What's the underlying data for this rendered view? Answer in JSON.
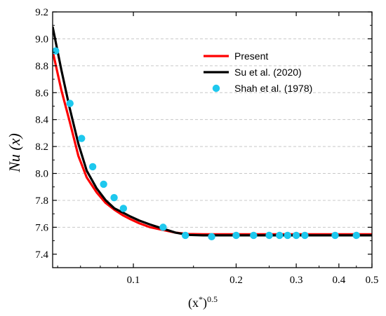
{
  "chart_data": {
    "type": "line",
    "xlabel": {
      "base": "(x",
      "sup1": "*",
      "close": ")",
      "sup2": "0.5"
    },
    "ylabel": {
      "main": "Nu",
      "arg": " (x)"
    },
    "xscale": "log",
    "xlim": [
      0.058,
      0.5
    ],
    "ylim": [
      7.3,
      9.2
    ],
    "x_ticks": [
      {
        "value": 0.1,
        "label": "0.1"
      },
      {
        "value": 0.2,
        "label": "0.2"
      },
      {
        "value": 0.3,
        "label": "0.3"
      },
      {
        "value": 0.4,
        "label": "0.4"
      },
      {
        "value": 0.5,
        "label": "0.5"
      }
    ],
    "y_ticks": [
      {
        "value": 7.4,
        "label": "7.4"
      },
      {
        "value": 7.6,
        "label": "7.6"
      },
      {
        "value": 7.8,
        "label": "7.8"
      },
      {
        "value": 8.0,
        "label": "8.0"
      },
      {
        "value": 8.2,
        "label": "8.2"
      },
      {
        "value": 8.4,
        "label": "8.4"
      },
      {
        "value": 8.6,
        "label": "8.6"
      },
      {
        "value": 8.8,
        "label": "8.8"
      },
      {
        "value": 9.0,
        "label": "9.0"
      },
      {
        "value": 9.2,
        "label": "9.2"
      }
    ],
    "grid": {
      "horizontal": true,
      "vertical": false
    },
    "legend_position": "top-right",
    "series": [
      {
        "name": "Present",
        "kind": "line",
        "color": "#ff0000",
        "x": [
          0.058,
          0.0615,
          0.065,
          0.069,
          0.073,
          0.078,
          0.083,
          0.088,
          0.093,
          0.098,
          0.104,
          0.112,
          0.122,
          0.133,
          0.145,
          0.16,
          0.2,
          0.3,
          0.4,
          0.5
        ],
        "y": [
          8.91,
          8.62,
          8.39,
          8.13,
          7.97,
          7.86,
          7.78,
          7.73,
          7.69,
          7.66,
          7.63,
          7.6,
          7.58,
          7.56,
          7.55,
          7.548,
          7.548,
          7.548,
          7.548,
          7.548
        ]
      },
      {
        "name": "Su et al. (2020)",
        "kind": "line",
        "color": "#000000",
        "x": [
          0.058,
          0.0615,
          0.065,
          0.069,
          0.073,
          0.078,
          0.083,
          0.088,
          0.093,
          0.098,
          0.104,
          0.112,
          0.122,
          0.133,
          0.145,
          0.16,
          0.2,
          0.3,
          0.4,
          0.5
        ],
        "y": [
          9.09,
          8.77,
          8.49,
          8.22,
          8.02,
          7.89,
          7.8,
          7.74,
          7.71,
          7.68,
          7.65,
          7.62,
          7.59,
          7.56,
          7.543,
          7.54,
          7.54,
          7.54,
          7.54,
          7.54
        ]
      },
      {
        "name": "Shah et al. (1978)",
        "kind": "scatter",
        "color": "#1ec8ee",
        "x": [
          0.0592,
          0.0652,
          0.0705,
          0.076,
          0.0818,
          0.0878,
          0.0935,
          0.1222,
          0.142,
          0.1695,
          0.2,
          0.225,
          0.25,
          0.268,
          0.283,
          0.3,
          0.318,
          0.39,
          0.45
        ],
        "y": [
          8.91,
          8.52,
          8.26,
          8.05,
          7.92,
          7.82,
          7.74,
          7.6,
          7.54,
          7.53,
          7.54,
          7.54,
          7.54,
          7.54,
          7.54,
          7.54,
          7.54,
          7.54,
          7.54
        ]
      }
    ]
  }
}
